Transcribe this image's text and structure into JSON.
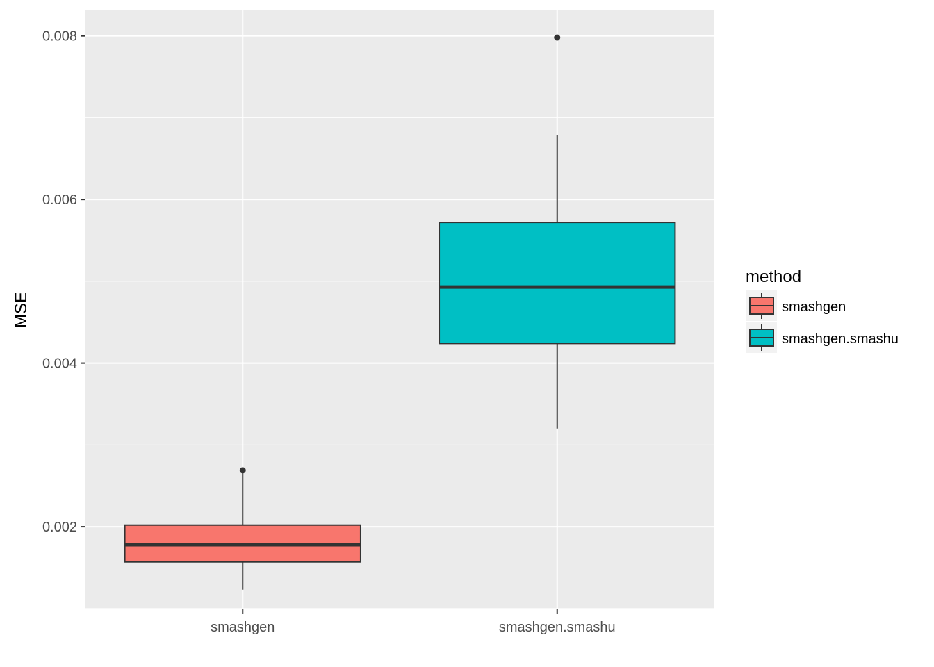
{
  "chart_data": {
    "type": "boxplot",
    "title": "",
    "xlabel": "",
    "ylabel": "MSE",
    "ylim": [
      0.00099,
      0.00832
    ],
    "yticks": [
      0.002,
      0.004,
      0.006,
      0.008
    ],
    "ytick_labels": [
      "0.002",
      "0.004",
      "0.006",
      "0.008"
    ],
    "categories": [
      "smashgen",
      "smashgen.smashu"
    ],
    "boxes": [
      {
        "category": "smashgen",
        "fill": "#F8766D",
        "whisker_low": 0.00123,
        "q1": 0.00157,
        "median": 0.00178,
        "q3": 0.00202,
        "whisker_high": 0.00268,
        "outliers": [
          0.00269
        ]
      },
      {
        "category": "smashgen.smashu",
        "fill": "#00BFC4",
        "whisker_low": 0.0032,
        "q1": 0.00424,
        "median": 0.00493,
        "q3": 0.00572,
        "whisker_high": 0.00679,
        "outliers": [
          0.00798
        ]
      }
    ],
    "grid": true,
    "panel_background": "#EBEBEB",
    "legend": {
      "title": "method",
      "position": "right",
      "entries": [
        {
          "label": "smashgen",
          "color": "#F8766D"
        },
        {
          "label": "smashgen.smashu",
          "color": "#00BFC4"
        }
      ]
    }
  }
}
